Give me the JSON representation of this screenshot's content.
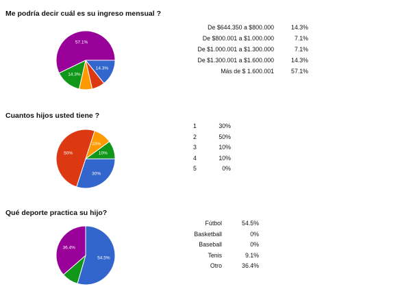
{
  "chart_data": [
    {
      "type": "pie",
      "title": "Me podría decir cuál es su ingreso mensual ?",
      "categories": [
        "De $644.350 a $800.000",
        "De $800.001 a $1.000.000",
        "De $1.000.001 a $1.300.000",
        "De $1.300.001 a $1.600.000",
        "Más de $ 1.600.001"
      ],
      "values": [
        14.3,
        7.1,
        7.1,
        14.3,
        57.1
      ],
      "value_labels": [
        "14.3%",
        "7.1%",
        "7.1%",
        "14.3%",
        "57.1%"
      ],
      "slice_labels": [
        "14.3%",
        "",
        "",
        "14.3%",
        "57.1%"
      ],
      "colors": [
        "#3366cc",
        "#dc3912",
        "#ff9900",
        "#109618",
        "#990099"
      ],
      "legend_placement": "right"
    },
    {
      "type": "pie",
      "title": "Cuantos hijos usted tiene ?",
      "categories": [
        "1",
        "2",
        "3",
        "4",
        "5"
      ],
      "values": [
        30,
        50,
        10,
        10,
        0
      ],
      "value_labels": [
        "30%",
        "50%",
        "10%",
        "10%",
        "0%"
      ],
      "slice_labels": [
        "30%",
        "50%",
        "10%",
        "10%",
        ""
      ],
      "colors": [
        "#3366cc",
        "#dc3912",
        "#ff9900",
        "#109618",
        "#990099"
      ],
      "legend_placement": "right"
    },
    {
      "type": "pie",
      "title": "Qué deporte practica su hijo?",
      "categories": [
        "Fútbol",
        "Basketball",
        "Baseball",
        "Tenis",
        "Otro"
      ],
      "values": [
        54.5,
        0,
        0,
        9.1,
        36.4
      ],
      "value_labels": [
        "54.5%",
        "0%",
        "0%",
        "9.1%",
        "36.4%"
      ],
      "slice_labels": [
        "54.5%",
        "",
        "",
        "",
        "36.4%"
      ],
      "colors": [
        "#3366cc",
        "#dc3912",
        "#ff9900",
        "#109618",
        "#990099"
      ],
      "legend_placement": "right"
    }
  ]
}
